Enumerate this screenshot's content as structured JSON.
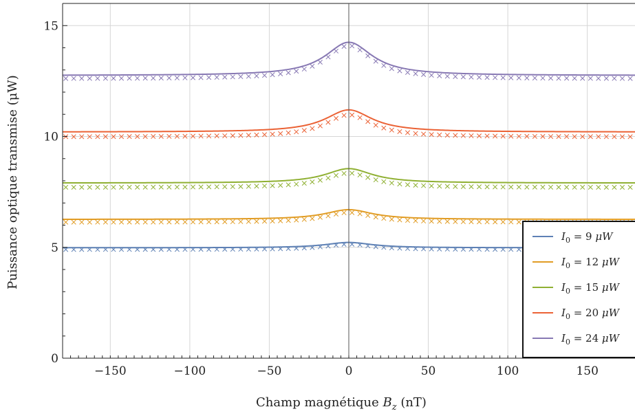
{
  "chart_data": {
    "type": "line",
    "xlabel": "Champ magnétique",
    "xlabel_symbol": "B",
    "xlabel_subscript": "z",
    "xlabel_unit": "(nT)",
    "ylabel": "Puissance optique transmise (μW)",
    "xlim": [
      -180,
      180
    ],
    "ylim": [
      0,
      16
    ],
    "x_ticks": [
      -150,
      -100,
      -50,
      0,
      50,
      100,
      150
    ],
    "x_tick_labels": [
      "−150",
      "−100",
      "−50",
      "0",
      "50",
      "100",
      "150"
    ],
    "y_ticks": [
      0,
      5,
      10,
      15
    ],
    "y_tick_labels": [
      "0",
      "5",
      "10",
      "15"
    ],
    "grid": true,
    "legend_position": "bottom-right",
    "legend_symbol": "I",
    "legend_subscript": "0",
    "legend_unit": "μW",
    "series": [
      {
        "name": "I0 = 9 μW",
        "label_value": "9",
        "color": "#5e81b5",
        "baseline": 4.98,
        "peak": 5.22,
        "data_offset": -0.08
      },
      {
        "name": "I0 = 12 μW",
        "label_value": "12",
        "color": "#e19c24",
        "baseline": 6.26,
        "peak": 6.7,
        "data_offset": -0.13
      },
      {
        "name": "I0 = 15 μW",
        "label_value": "15",
        "color": "#8fb032",
        "baseline": 7.9,
        "peak": 8.55,
        "data_offset": -0.2
      },
      {
        "name": "I0 = 20 μW",
        "label_value": "20",
        "color": "#eb6235",
        "baseline": 10.2,
        "peak": 11.2,
        "data_offset": -0.22
      },
      {
        "name": "I0 = 24 μW",
        "label_value": "24",
        "color": "#8778b3",
        "baseline": 12.75,
        "peak": 14.25,
        "data_offset": -0.15
      }
    ],
    "line_half_width_nT": 18,
    "marker_spacing_nT": 5,
    "marker_style": "x"
  }
}
